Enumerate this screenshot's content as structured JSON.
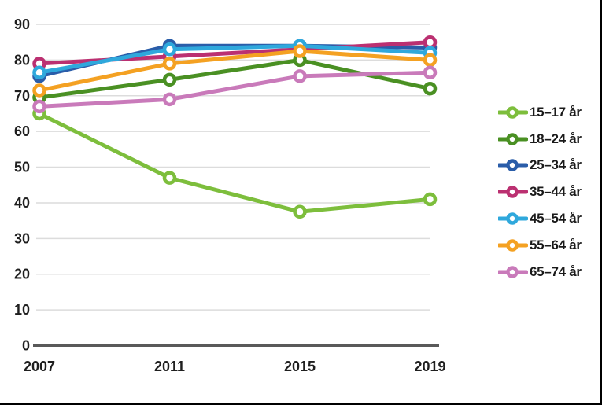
{
  "chart_data": {
    "type": "line",
    "title": "",
    "xlabel": "",
    "ylabel": "",
    "x_labels": [
      "2007",
      "2011",
      "2015",
      "2019"
    ],
    "yticks": [
      0,
      10,
      20,
      30,
      40,
      50,
      60,
      70,
      80,
      90
    ],
    "ylim": [
      0,
      90
    ],
    "grid": true,
    "legend_position": "right",
    "marker": "open-circle",
    "series": [
      {
        "name": "15–17 år",
        "color": "#7DBE3C",
        "values": [
          65,
          47,
          37.5,
          41
        ]
      },
      {
        "name": "18–24 år",
        "color": "#4A9023",
        "values": [
          69.5,
          74.5,
          80,
          72
        ]
      },
      {
        "name": "25–34 år",
        "color": "#2A5DA9",
        "values": [
          75.5,
          84,
          84,
          83.5
        ]
      },
      {
        "name": "35–44 år",
        "color": "#BB3071",
        "values": [
          79,
          81,
          83,
          85
        ]
      },
      {
        "name": "45–54 år",
        "color": "#2FA8DC",
        "values": [
          76.5,
          83,
          84,
          82
        ]
      },
      {
        "name": "55–64 år",
        "color": "#F4A122",
        "values": [
          71.5,
          79,
          82.5,
          80
        ]
      },
      {
        "name": "65–74 år",
        "color": "#C97ABA",
        "values": [
          67,
          69,
          75.5,
          76.5
        ]
      }
    ]
  },
  "colors": {
    "gridline": "#DCDCDC",
    "zero_axis": "#595959",
    "tick_text": "#1f1f1f",
    "frame_border": "#000000",
    "background": "#FFFFFF"
  }
}
